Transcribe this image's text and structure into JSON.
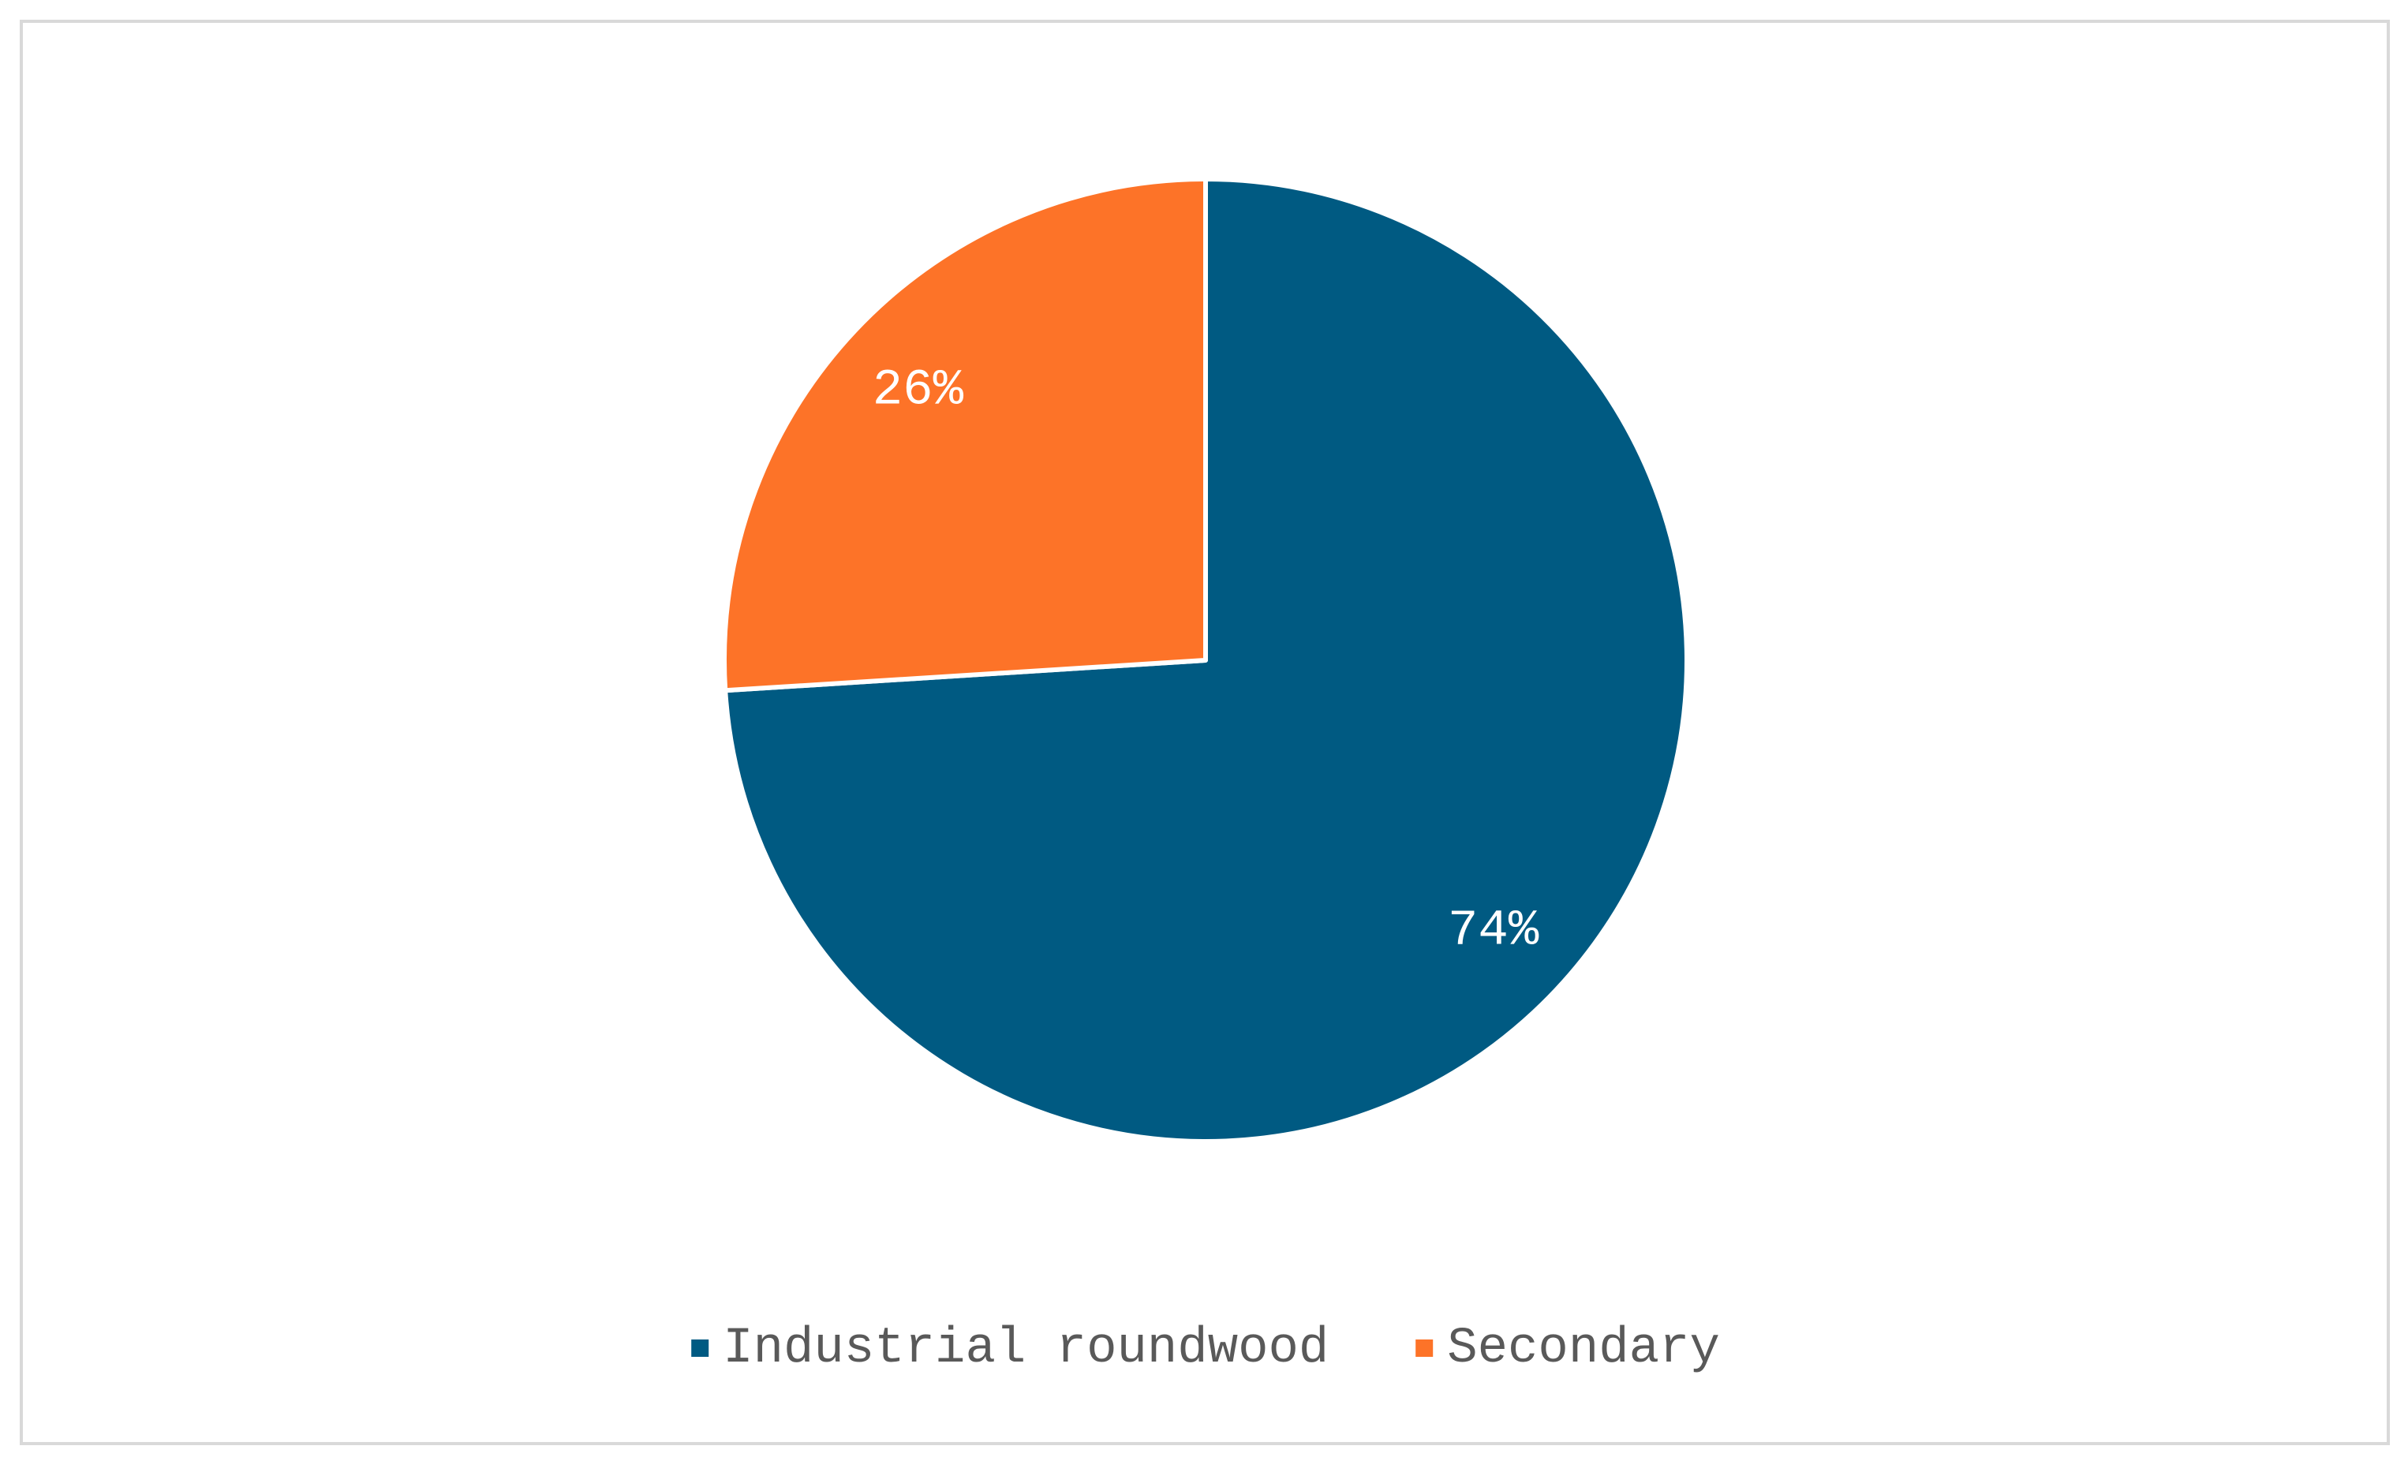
{
  "chart_data": {
    "type": "pie",
    "categories": [
      "Industrial roundwood",
      "Secondary"
    ],
    "values": [
      74,
      26
    ],
    "value_labels": [
      "74%",
      "26%"
    ],
    "colors": [
      "#005a82",
      "#fd7328"
    ],
    "legend": "bottom"
  }
}
